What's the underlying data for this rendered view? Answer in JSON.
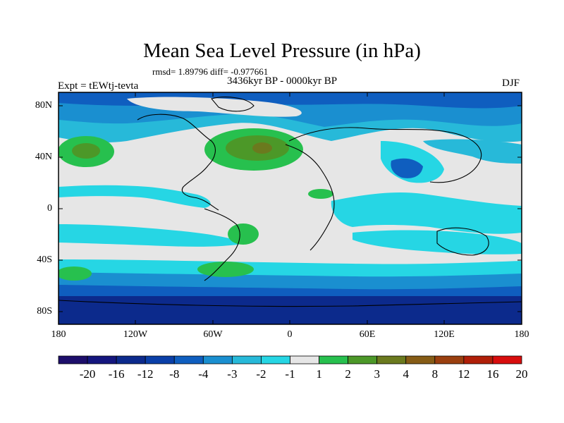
{
  "title": "Mean Sea Level Pressure (in hPa)",
  "stats": "rmsd= 1.89796  diff= -0.977661",
  "period": "3436kyr BP - 0000kyr BP",
  "experiment": "Expt = tEWtj-tevta",
  "season": "DJF",
  "axes": {
    "y_ticks": [
      "80N",
      "40N",
      "0",
      "40S",
      "80S"
    ],
    "x_ticks": [
      "180",
      "120W",
      "60W",
      "0",
      "60E",
      "120E",
      "180"
    ]
  },
  "colorbar": {
    "labels": [
      "-20",
      "-16",
      "-12",
      "-8",
      "-4",
      "-3",
      "-2",
      "-1",
      "1",
      "2",
      "3",
      "4",
      "8",
      "12",
      "16",
      "20"
    ],
    "colors": [
      "#1d0e6b",
      "#14167e",
      "#0c2a8c",
      "#0a3fa8",
      "#0f5ebf",
      "#1a8fd0",
      "#27b9d9",
      "#26d6e4",
      "#e6e6e6",
      "#27c04e",
      "#4c9828",
      "#6b7a1e",
      "#865c16",
      "#9a3f0f",
      "#b01f08",
      "#d80d0d"
    ]
  }
}
